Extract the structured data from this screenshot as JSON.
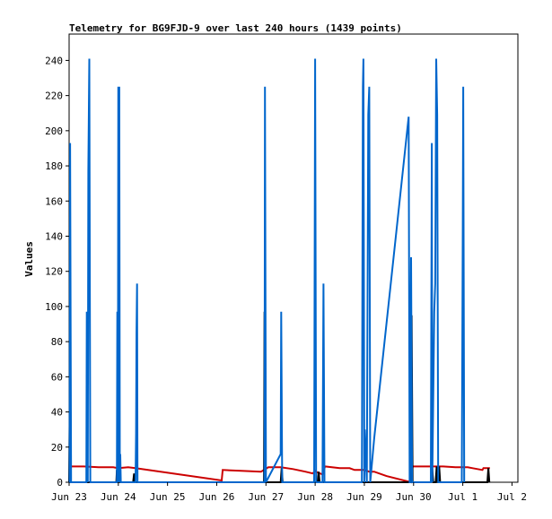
{
  "chart_data": {
    "type": "line",
    "title": "Telemetry for BG9FJD-9 over last 240 hours (1439 points)",
    "xlabel": "",
    "ylabel": "Values",
    "x_unit": "days",
    "xlim": [
      0,
      9.12
    ],
    "ylim": [
      0,
      255
    ],
    "grid": false,
    "legend": "none",
    "x_ticks": [
      {
        "label": "Jun 23",
        "x": 0
      },
      {
        "label": "Jun 24",
        "x": 1
      },
      {
        "label": "Jun 25",
        "x": 2
      },
      {
        "label": "Jun 26",
        "x": 3
      },
      {
        "label": "Jun 27",
        "x": 4
      },
      {
        "label": "Jun 28",
        "x": 5
      },
      {
        "label": "Jun 29",
        "x": 6
      },
      {
        "label": "Jun 30",
        "x": 7
      },
      {
        "label": "Jul 1",
        "x": 8
      },
      {
        "label": "Jul 2",
        "x": 9
      }
    ],
    "y_ticks": [
      0,
      20,
      40,
      60,
      80,
      100,
      120,
      140,
      160,
      180,
      200,
      220,
      240
    ],
    "series": [
      {
        "color": "#cc0000",
        "points": [
          [
            0.01,
            9
          ],
          [
            0.3,
            9
          ],
          [
            0.6,
            8.5
          ],
          [
            0.9,
            8.5
          ],
          [
            1.0,
            8
          ],
          [
            1.2,
            8.5
          ],
          [
            1.35,
            8
          ],
          [
            3.1,
            1
          ],
          [
            3.12,
            7
          ],
          [
            3.5,
            6.5
          ],
          [
            3.9,
            6
          ],
          [
            4.05,
            8.5
          ],
          [
            4.3,
            8.5
          ],
          [
            4.55,
            7.5
          ],
          [
            4.8,
            6
          ],
          [
            4.95,
            5
          ],
          [
            5.0,
            6.5
          ],
          [
            5.05,
            5.5
          ],
          [
            5.15,
            4.5
          ],
          [
            5.2,
            9
          ],
          [
            5.5,
            8
          ],
          [
            5.7,
            8
          ],
          [
            5.8,
            7
          ],
          [
            6.0,
            7
          ],
          [
            6.1,
            6
          ],
          [
            6.2,
            6
          ],
          [
            6.45,
            3.5
          ],
          [
            6.95,
            0
          ],
          [
            6.98,
            9
          ],
          [
            7.3,
            9
          ],
          [
            7.6,
            9
          ],
          [
            7.85,
            8.5
          ],
          [
            8.1,
            8.5
          ],
          [
            8.2,
            8
          ],
          [
            8.4,
            7
          ],
          [
            8.42,
            8
          ],
          [
            8.55,
            8
          ]
        ]
      },
      {
        "color": "#000000",
        "points": [
          [
            0.0,
            0
          ],
          [
            0.01,
            32
          ],
          [
            0.03,
            0
          ],
          [
            0.2,
            0
          ],
          [
            0.9,
            0
          ],
          [
            0.96,
            0
          ],
          [
            0.97,
            7
          ],
          [
            0.99,
            0
          ],
          [
            1.0,
            0
          ],
          [
            1.02,
            8
          ],
          [
            1.04,
            0
          ],
          [
            1.05,
            0
          ],
          [
            1.3,
            0
          ],
          [
            1.32,
            5
          ],
          [
            1.34,
            0
          ],
          [
            2.0,
            0
          ],
          [
            3.9,
            0
          ],
          [
            3.96,
            0
          ],
          [
            3.97,
            97
          ],
          [
            3.99,
            0
          ],
          [
            4.3,
            0
          ],
          [
            4.32,
            8
          ],
          [
            4.34,
            0
          ],
          [
            5.0,
            0
          ],
          [
            5.05,
            0
          ],
          [
            5.07,
            6
          ],
          [
            5.09,
            0
          ],
          [
            6.0,
            0
          ],
          [
            6.9,
            0
          ],
          [
            6.94,
            0
          ],
          [
            6.96,
            95
          ],
          [
            6.98,
            0
          ],
          [
            7.35,
            0
          ],
          [
            7.38,
            8
          ],
          [
            7.4,
            0
          ],
          [
            7.45,
            0
          ],
          [
            7.47,
            9
          ],
          [
            7.49,
            0
          ],
          [
            7.5,
            0
          ],
          [
            7.52,
            9
          ],
          [
            7.54,
            0
          ],
          [
            8.0,
            0
          ],
          [
            8.5,
            0
          ],
          [
            8.52,
            8
          ],
          [
            8.54,
            0
          ]
        ]
      },
      {
        "color": "#0066cc",
        "points": [
          [
            0.0,
            0
          ],
          [
            0.01,
            0
          ],
          [
            0.02,
            193
          ],
          [
            0.04,
            0
          ],
          [
            0.35,
            0
          ],
          [
            0.36,
            97
          ],
          [
            0.38,
            0
          ],
          [
            0.39,
            177
          ],
          [
            0.41,
            241
          ],
          [
            0.43,
            0
          ],
          [
            0.97,
            0
          ],
          [
            0.98,
            97
          ],
          [
            0.99,
            0
          ],
          [
            1.0,
            225
          ],
          [
            1.01,
            0
          ],
          [
            1.02,
            225
          ],
          [
            1.03,
            0
          ],
          [
            1.04,
            16
          ],
          [
            1.05,
            0
          ],
          [
            1.35,
            0
          ],
          [
            1.36,
            28
          ],
          [
            1.37,
            85
          ],
          [
            1.38,
            113
          ],
          [
            1.39,
            0
          ],
          [
            3.97,
            0
          ],
          [
            3.98,
            225
          ],
          [
            4.0,
            0
          ],
          [
            4.3,
            16
          ],
          [
            4.31,
            97
          ],
          [
            4.33,
            0
          ],
          [
            4.98,
            0
          ],
          [
            5.0,
            241
          ],
          [
            5.02,
            0
          ],
          [
            5.15,
            0
          ],
          [
            5.17,
            113
          ],
          [
            5.19,
            0
          ],
          [
            5.95,
            0
          ],
          [
            5.97,
            225
          ],
          [
            5.98,
            241
          ],
          [
            6.0,
            0
          ],
          [
            6.01,
            30
          ],
          [
            6.05,
            0
          ],
          [
            6.08,
            209
          ],
          [
            6.1,
            225
          ],
          [
            6.12,
            0
          ],
          [
            6.2,
            25
          ],
          [
            6.9,
            208
          ],
          [
            6.92,
            0
          ],
          [
            6.93,
            0
          ],
          [
            6.95,
            128
          ],
          [
            6.97,
            0
          ],
          [
            7.35,
            0
          ],
          [
            7.37,
            193
          ],
          [
            7.38,
            0
          ],
          [
            7.42,
            97
          ],
          [
            7.44,
            113
          ],
          [
            7.46,
            241
          ],
          [
            7.48,
            209
          ],
          [
            7.5,
            0
          ],
          [
            7.98,
            0
          ],
          [
            8.0,
            145
          ],
          [
            8.01,
            225
          ],
          [
            8.03,
            0
          ]
        ]
      }
    ]
  }
}
